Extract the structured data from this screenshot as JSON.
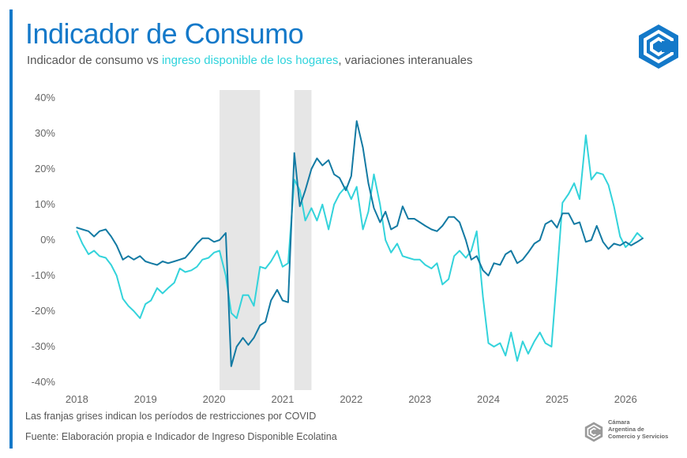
{
  "title": "Indicador de Consumo",
  "subtitle": {
    "part1": "Indicador de consumo vs ",
    "highlight": "ingreso disponible de los hogares",
    "part2": ", variaciones interanuales"
  },
  "footer": {
    "note": "Las franjas grises indican los períodos de restricciones por COVID",
    "source": "Fuente: Elaboración propia e Indicador de Ingreso Disponible Ecolatina"
  },
  "logo": {
    "icon": "camara-logo-icon",
    "text": [
      "Cámara",
      "Argentina de",
      "Comercio y Servicios"
    ]
  },
  "colors": {
    "consumo": "#137aa3",
    "ingreso": "#33d3db",
    "shade": "#e6e6e6",
    "accent": "#1479c9"
  },
  "chart_data": {
    "type": "line",
    "title": "Indicador de Consumo",
    "xlabel": "",
    "ylabel": "",
    "xlim": [
      2017.8,
      2026.55
    ],
    "ylim": [
      -40,
      40
    ],
    "y_ticks": [
      40,
      30,
      20,
      10,
      0,
      -10,
      -20,
      -30,
      -40
    ],
    "y_tick_labels": [
      "40%",
      "30%",
      "20%",
      "10%",
      "0%",
      "-10%",
      "-20%",
      "-30%",
      "-40%"
    ],
    "x_ticks": [
      2018,
      2019,
      2020,
      2021,
      2022,
      2023,
      2024,
      2025,
      2026
    ],
    "x_tick_labels": [
      "2018",
      "2019",
      "2020",
      "2021",
      "2022",
      "2023",
      "2024",
      "2025",
      "2026"
    ],
    "grid": false,
    "shaded_periods": [
      [
        2020.08,
        2020.67
      ],
      [
        2021.17,
        2021.42
      ]
    ],
    "series": [
      {
        "name": "Indicador de consumo",
        "color": "#137aa3",
        "x": [
          2018.0,
          2018.08,
          2018.17,
          2018.25,
          2018.33,
          2018.42,
          2018.5,
          2018.58,
          2018.67,
          2018.75,
          2018.83,
          2018.92,
          2019.0,
          2019.08,
          2019.17,
          2019.25,
          2019.33,
          2019.42,
          2019.5,
          2019.58,
          2019.67,
          2019.75,
          2019.83,
          2019.92,
          2020.0,
          2020.08,
          2020.17,
          2020.25,
          2020.33,
          2020.42,
          2020.5,
          2020.58,
          2020.67,
          2020.75,
          2020.83,
          2020.92,
          2021.0,
          2021.08,
          2021.17,
          2021.25,
          2021.33,
          2021.42,
          2021.5,
          2021.58,
          2021.67,
          2021.75,
          2021.83,
          2021.92,
          2022.0,
          2022.08,
          2022.17,
          2022.25,
          2022.33,
          2022.42,
          2022.5,
          2022.58,
          2022.67,
          2022.75,
          2022.83,
          2022.92,
          2023.0,
          2023.08,
          2023.17,
          2023.25,
          2023.33,
          2023.42,
          2023.5,
          2023.58,
          2023.67,
          2023.75,
          2023.83,
          2023.92,
          2024.0,
          2024.08,
          2024.17,
          2024.25,
          2024.33,
          2024.42,
          2024.5,
          2024.58,
          2024.67,
          2024.75,
          2024.83,
          2024.92,
          2025.0,
          2025.08,
          2025.17,
          2025.25,
          2025.33,
          2025.42,
          2025.5,
          2025.58,
          2025.67,
          2025.75,
          2025.83,
          2025.92,
          2026.0,
          2026.08,
          2026.17,
          2026.25
        ],
        "values": [
          3.5,
          3.0,
          2.5,
          1.0,
          2.5,
          3.0,
          1.0,
          -1.5,
          -5.5,
          -4.5,
          -5.5,
          -4.5,
          -6.0,
          -6.5,
          -7.0,
          -6.0,
          -6.5,
          -6.0,
          -5.5,
          -5.0,
          -3.0,
          -1.0,
          0.5,
          0.5,
          -0.5,
          0.0,
          2.0,
          -35.5,
          -30.0,
          -27.5,
          -29.5,
          -27.5,
          -24.0,
          -23.0,
          -17.0,
          -14.0,
          -17.0,
          -17.5,
          24.5,
          9.5,
          14.0,
          20.0,
          23.0,
          21.0,
          22.5,
          18.5,
          17.5,
          14.0,
          18.0,
          33.5,
          26.0,
          16.0,
          9.0,
          5.0,
          8.0,
          3.0,
          4.0,
          9.5,
          6.0,
          6.0,
          5.0,
          4.0,
          3.0,
          2.5,
          4.0,
          6.5,
          6.5,
          5.0,
          0.0,
          -5.5,
          -4.5,
          -8.5,
          -10.0,
          -6.5,
          -7.0,
          -4.0,
          -3.0,
          -6.5,
          -5.5,
          -3.5,
          -1.0,
          0.0,
          4.5,
          5.5,
          3.5,
          7.5,
          7.5,
          4.5,
          5.0,
          -0.5,
          0.0,
          4.0,
          -0.5,
          -2.5,
          -1.0,
          -1.5,
          -0.5,
          -1.5,
          -0.5,
          0.5
        ]
      },
      {
        "name": "ingreso disponible de los hogares",
        "color": "#33d3db",
        "x": [
          2018.0,
          2018.08,
          2018.17,
          2018.25,
          2018.33,
          2018.42,
          2018.5,
          2018.58,
          2018.67,
          2018.75,
          2018.83,
          2018.92,
          2019.0,
          2019.08,
          2019.17,
          2019.25,
          2019.33,
          2019.42,
          2019.5,
          2019.58,
          2019.67,
          2019.75,
          2019.83,
          2019.92,
          2020.0,
          2020.08,
          2020.17,
          2020.25,
          2020.33,
          2020.42,
          2020.5,
          2020.58,
          2020.67,
          2020.75,
          2020.83,
          2020.92,
          2021.0,
          2021.08,
          2021.17,
          2021.25,
          2021.33,
          2021.42,
          2021.5,
          2021.58,
          2021.67,
          2021.75,
          2021.83,
          2021.92,
          2022.0,
          2022.08,
          2022.17,
          2022.25,
          2022.33,
          2022.42,
          2022.5,
          2022.58,
          2022.67,
          2022.75,
          2022.83,
          2022.92,
          2023.0,
          2023.08,
          2023.17,
          2023.25,
          2023.33,
          2023.42,
          2023.5,
          2023.58,
          2023.67,
          2023.75,
          2023.83,
          2023.92,
          2024.0,
          2024.08,
          2024.17,
          2024.25,
          2024.33,
          2024.42,
          2024.5,
          2024.58,
          2024.67,
          2024.75,
          2024.83,
          2024.92,
          2025.0,
          2025.08,
          2025.17,
          2025.25,
          2025.33,
          2025.42,
          2025.5,
          2025.58,
          2025.67,
          2025.75,
          2025.83,
          2025.92,
          2026.0,
          2026.08,
          2026.17,
          2026.25
        ],
        "values": [
          2.5,
          -1.0,
          -4.0,
          -3.0,
          -4.5,
          -5.0,
          -7.0,
          -10.0,
          -16.5,
          -18.5,
          -20.0,
          -22.0,
          -18.0,
          -17.0,
          -13.5,
          -15.0,
          -13.5,
          -12.0,
          -8.0,
          -9.0,
          -8.5,
          -7.5,
          -5.5,
          -5.0,
          -3.5,
          -3.0,
          -10.0,
          -20.5,
          -22.0,
          -15.5,
          -15.5,
          -18.5,
          -7.5,
          -8.0,
          -6.0,
          -3.0,
          -7.5,
          -6.5,
          17.0,
          14.0,
          5.5,
          9.0,
          5.5,
          10.0,
          3.0,
          10.0,
          13.0,
          15.0,
          11.5,
          15.0,
          3.0,
          8.0,
          18.5,
          10.0,
          0.0,
          -3.5,
          -1.0,
          -4.5,
          -5.0,
          -5.5,
          -5.5,
          -7.0,
          -8.0,
          -6.5,
          -12.5,
          -11.0,
          -4.5,
          -3.0,
          -5.0,
          -3.0,
          2.5,
          -16.0,
          -29.0,
          -30.0,
          -29.0,
          -32.5,
          -26.0,
          -34.0,
          -28.5,
          -32.0,
          -28.5,
          -26.0,
          -29.0,
          -30.0,
          -10.0,
          10.5,
          13.0,
          16.0,
          11.5,
          29.5,
          17.0,
          19.0,
          18.5,
          15.5,
          9.5,
          1.0,
          -2.0,
          -0.5,
          2.0,
          0.5
        ]
      }
    ]
  }
}
